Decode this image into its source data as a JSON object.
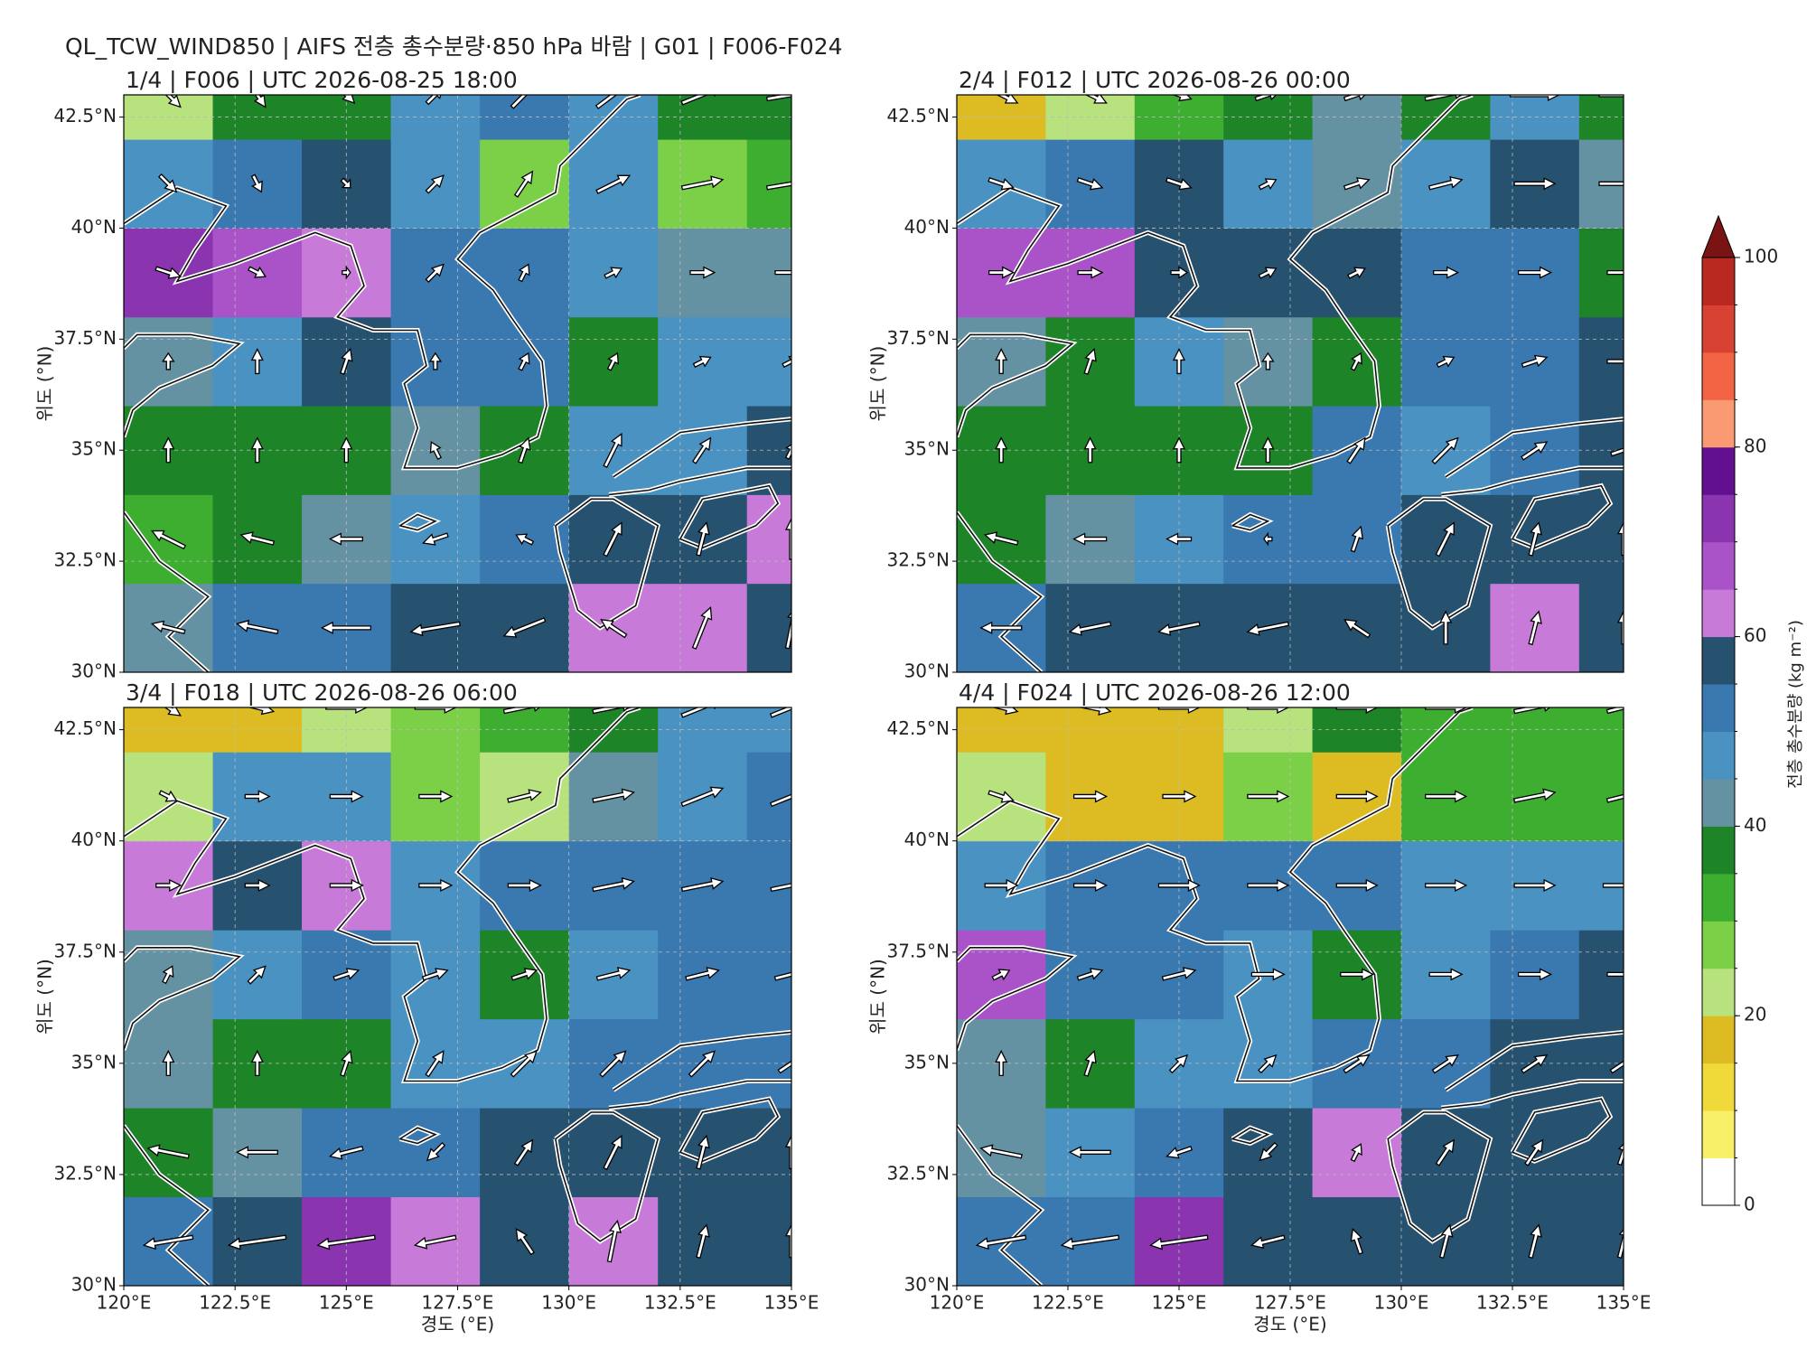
{
  "title": "QL_TCW_WIND850 | AIFS 전층 총수분량·850 hPa 바람 | G01 | F006-F024",
  "chart_data": [
    {
      "type": "heatmap",
      "title": "1/4 | F006 | UTC 2026-08-25 18:00",
      "ylabel": "위도 (°N)",
      "xlim": [
        120,
        135
      ],
      "ylim": [
        30,
        43
      ],
      "grid": true,
      "yticks": [
        {
          "value": 30,
          "label": "30°N"
        },
        {
          "value": 32.5,
          "label": "32.5°N"
        },
        {
          "value": 35,
          "label": "35°N"
        },
        {
          "value": 37.5,
          "label": "37.5°N"
        },
        {
          "value": 40,
          "label": "40°N"
        },
        {
          "value": 42.5,
          "label": "42.5°N"
        }
      ],
      "x": [
        121,
        123,
        125,
        127,
        129,
        131,
        133,
        135
      ],
      "y": [
        31,
        33,
        35,
        37,
        39,
        41,
        43
      ],
      "values": [
        [
          40,
          50,
          52,
          55,
          55,
          62,
          62,
          58
        ],
        [
          32,
          35,
          40,
          48,
          50,
          55,
          55,
          62
        ],
        [
          35,
          36,
          38,
          40,
          38,
          45,
          48,
          55
        ],
        [
          42,
          45,
          55,
          50,
          52,
          38,
          45,
          48
        ],
        [
          70,
          68,
          62,
          50,
          50,
          48,
          42,
          40
        ],
        [
          45,
          50,
          55,
          45,
          25,
          45,
          28,
          30
        ],
        [
          22,
          38,
          35,
          45,
          50,
          45,
          38,
          35
        ]
      ],
      "wind_u": [
        [
          -4,
          -5,
          -6,
          -6,
          -5,
          -3,
          2,
          1
        ],
        [
          -4,
          -4,
          -4,
          -3,
          -2,
          2,
          1,
          0
        ],
        [
          0,
          0,
          0,
          -1,
          1,
          2,
          2,
          1
        ],
        [
          0,
          0,
          1,
          0,
          1,
          1,
          2,
          2
        ],
        [
          3,
          2,
          1,
          2,
          1,
          2,
          3,
          4
        ],
        [
          2,
          1,
          1,
          2,
          2,
          4,
          5,
          6
        ],
        [
          3,
          2,
          2,
          2,
          3,
          4,
          5,
          6
        ]
      ],
      "wind_v": [
        [
          1,
          1,
          0,
          -1,
          -2,
          2,
          5,
          5
        ],
        [
          2,
          1,
          0,
          -1,
          1,
          4,
          4,
          5
        ],
        [
          3,
          3,
          3,
          2,
          3,
          4,
          3,
          2
        ],
        [
          2,
          3,
          3,
          2,
          2,
          2,
          1,
          1
        ],
        [
          -1,
          -1,
          0,
          2,
          2,
          1,
          0,
          0
        ],
        [
          -2,
          -2,
          -1,
          2,
          3,
          2,
          1,
          1
        ],
        [
          -3,
          -3,
          -2,
          2,
          3,
          3,
          2,
          1
        ]
      ]
    },
    {
      "type": "heatmap",
      "title": "2/4 | F012 | UTC 2026-08-26 00:00",
      "ylabel": "위도 (°N)",
      "xlim": [
        120,
        135
      ],
      "ylim": [
        30,
        43
      ],
      "grid": true,
      "yticks": [
        {
          "value": 30,
          "label": "30°N"
        },
        {
          "value": 32.5,
          "label": "32.5°N"
        },
        {
          "value": 35,
          "label": "35°N"
        },
        {
          "value": 37.5,
          "label": "37.5°N"
        },
        {
          "value": 40,
          "label": "40°N"
        },
        {
          "value": 42.5,
          "label": "42.5°N"
        }
      ],
      "x": [
        121,
        123,
        125,
        127,
        129,
        131,
        133,
        135
      ],
      "y": [
        31,
        33,
        35,
        37,
        39,
        41,
        43
      ],
      "values": [
        [
          52,
          55,
          58,
          58,
          55,
          58,
          62,
          55
        ],
        [
          36,
          40,
          48,
          52,
          52,
          55,
          56,
          58
        ],
        [
          35,
          36,
          38,
          38,
          50,
          48,
          52,
          55
        ],
        [
          40,
          38,
          45,
          42,
          38,
          50,
          52,
          55
        ],
        [
          68,
          68,
          58,
          55,
          55,
          52,
          50,
          38
        ],
        [
          48,
          50,
          55,
          45,
          40,
          45,
          55,
          40
        ],
        [
          15,
          22,
          30,
          38,
          40,
          35,
          45,
          38
        ]
      ],
      "wind_u": [
        [
          -5,
          -5,
          -5,
          -5,
          -3,
          0,
          1,
          0
        ],
        [
          -4,
          -4,
          -3,
          -1,
          1,
          2,
          1,
          0
        ],
        [
          0,
          0,
          0,
          0,
          2,
          3,
          3,
          3
        ],
        [
          0,
          1,
          0,
          0,
          1,
          2,
          3,
          4
        ],
        [
          3,
          3,
          2,
          2,
          2,
          3,
          4,
          4
        ],
        [
          3,
          3,
          3,
          2,
          3,
          4,
          5,
          6
        ],
        [
          4,
          4,
          3,
          3,
          3,
          5,
          6,
          6
        ]
      ],
      "wind_v": [
        [
          0,
          -1,
          -1,
          -1,
          2,
          4,
          4,
          4
        ],
        [
          1,
          0,
          0,
          0,
          3,
          4,
          4,
          4
        ],
        [
          3,
          3,
          3,
          3,
          3,
          3,
          2,
          1
        ],
        [
          3,
          3,
          3,
          2,
          2,
          1,
          1,
          0
        ],
        [
          0,
          0,
          0,
          1,
          1,
          0,
          0,
          0
        ],
        [
          -1,
          -1,
          -1,
          1,
          1,
          1,
          0,
          0
        ],
        [
          -2,
          -2,
          -1,
          1,
          1,
          1,
          0,
          0
        ]
      ]
    },
    {
      "type": "heatmap",
      "title": "3/4 | F018 | UTC 2026-08-26 06:00",
      "xlabel": "경도 (°E)",
      "ylabel": "위도 (°N)",
      "xlim": [
        120,
        135
      ],
      "ylim": [
        30,
        43
      ],
      "grid": true,
      "xticks": [
        {
          "value": 120,
          "label": "120°E"
        },
        {
          "value": 122.5,
          "label": "122.5°E"
        },
        {
          "value": 125,
          "label": "125°E"
        },
        {
          "value": 127.5,
          "label": "127.5°E"
        },
        {
          "value": 130,
          "label": "130°E"
        },
        {
          "value": 132.5,
          "label": "132.5°E"
        },
        {
          "value": 135,
          "label": "135°E"
        }
      ],
      "yticks": [
        {
          "value": 30,
          "label": "30°N"
        },
        {
          "value": 32.5,
          "label": "32.5°N"
        },
        {
          "value": 35,
          "label": "35°N"
        },
        {
          "value": 37.5,
          "label": "37.5°N"
        },
        {
          "value": 40,
          "label": "40°N"
        },
        {
          "value": 42.5,
          "label": "42.5°N"
        }
      ],
      "x": [
        121,
        123,
        125,
        127,
        129,
        131,
        133,
        135
      ],
      "y": [
        31,
        33,
        35,
        37,
        39,
        41,
        43
      ],
      "values": [
        [
          50,
          55,
          70,
          62,
          55,
          62,
          55,
          55
        ],
        [
          38,
          42,
          52,
          52,
          55,
          58,
          55,
          55
        ],
        [
          40,
          35,
          36,
          45,
          48,
          52,
          50,
          50
        ],
        [
          42,
          45,
          50,
          48,
          38,
          48,
          50,
          52
        ],
        [
          62,
          55,
          62,
          45,
          50,
          50,
          52,
          50
        ],
        [
          20,
          45,
          48,
          25,
          22,
          40,
          48,
          50
        ],
        [
          15,
          18,
          22,
          25,
          32,
          38,
          45,
          48
        ]
      ],
      "wind_u": [
        [
          -6,
          -7,
          -7,
          -5,
          -2,
          1,
          1,
          0
        ],
        [
          -5,
          -5,
          -4,
          -2,
          2,
          2,
          1,
          0
        ],
        [
          0,
          0,
          1,
          2,
          3,
          3,
          3,
          3
        ],
        [
          1,
          2,
          3,
          3,
          3,
          4,
          4,
          4
        ],
        [
          3,
          3,
          4,
          4,
          4,
          5,
          5,
          5
        ],
        [
          2,
          3,
          4,
          4,
          4,
          5,
          5,
          5
        ],
        [
          3,
          4,
          5,
          5,
          5,
          5,
          5,
          5
        ]
      ],
      "wind_v": [
        [
          -1,
          -1,
          -1,
          -1,
          3,
          5,
          4,
          4
        ],
        [
          1,
          0,
          -1,
          -2,
          3,
          4,
          4,
          4
        ],
        [
          3,
          3,
          3,
          3,
          3,
          3,
          3,
          2
        ],
        [
          2,
          2,
          1,
          1,
          1,
          1,
          1,
          1
        ],
        [
          0,
          0,
          0,
          0,
          0,
          1,
          1,
          1
        ],
        [
          -1,
          0,
          0,
          0,
          1,
          1,
          2,
          2
        ],
        [
          -2,
          -1,
          0,
          0,
          1,
          1,
          2,
          2
        ]
      ]
    },
    {
      "type": "heatmap",
      "title": "4/4 | F024 | UTC 2026-08-26 12:00",
      "xlabel": "경도 (°E)",
      "ylabel": "위도 (°N)",
      "xlim": [
        120,
        135
      ],
      "ylim": [
        30,
        43
      ],
      "grid": true,
      "xticks": [
        {
          "value": 120,
          "label": "120°E"
        },
        {
          "value": 122.5,
          "label": "122.5°E"
        },
        {
          "value": 125,
          "label": "125°E"
        },
        {
          "value": 127.5,
          "label": "127.5°E"
        },
        {
          "value": 130,
          "label": "130°E"
        },
        {
          "value": 132.5,
          "label": "132.5°E"
        },
        {
          "value": 135,
          "label": "135°E"
        }
      ],
      "yticks": [
        {
          "value": 30,
          "label": "30°N"
        },
        {
          "value": 32.5,
          "label": "32.5°N"
        },
        {
          "value": 35,
          "label": "35°N"
        },
        {
          "value": 37.5,
          "label": "37.5°N"
        },
        {
          "value": 40,
          "label": "40°N"
        },
        {
          "value": 42.5,
          "label": "42.5°N"
        }
      ],
      "x": [
        121,
        123,
        125,
        127,
        129,
        131,
        133,
        135
      ],
      "y": [
        31,
        33,
        35,
        37,
        39,
        41,
        43
      ],
      "values": [
        [
          50,
          52,
          70,
          58,
          58,
          58,
          55,
          55
        ],
        [
          40,
          45,
          52,
          55,
          62,
          55,
          58,
          55
        ],
        [
          42,
          38,
          45,
          48,
          50,
          52,
          55,
          58
        ],
        [
          65,
          50,
          52,
          48,
          38,
          45,
          50,
          58
        ],
        [
          45,
          50,
          50,
          50,
          50,
          48,
          48,
          45
        ],
        [
          22,
          15,
          18,
          25,
          15,
          30,
          30,
          30
        ],
        [
          15,
          15,
          18,
          22,
          35,
          32,
          30,
          30
        ]
      ],
      "wind_u": [
        [
          -6,
          -7,
          -7,
          -4,
          -1,
          1,
          1,
          1
        ],
        [
          -5,
          -5,
          -3,
          -2,
          1,
          2,
          2,
          1
        ],
        [
          0,
          1,
          2,
          2,
          3,
          3,
          3,
          3
        ],
        [
          2,
          3,
          4,
          4,
          4,
          4,
          4,
          4
        ],
        [
          4,
          4,
          5,
          5,
          5,
          5,
          5,
          5
        ],
        [
          3,
          4,
          4,
          5,
          5,
          5,
          5,
          4
        ],
        [
          4,
          5,
          5,
          5,
          5,
          5,
          5,
          4
        ]
      ],
      "wind_v": [
        [
          -1,
          -1,
          -1,
          -1,
          3,
          4,
          4,
          4
        ],
        [
          1,
          0,
          -1,
          -2,
          2,
          3,
          3,
          3
        ],
        [
          3,
          3,
          2,
          2,
          2,
          2,
          2,
          2
        ],
        [
          1,
          1,
          1,
          0,
          0,
          0,
          0,
          0
        ],
        [
          0,
          0,
          0,
          0,
          0,
          0,
          0,
          0
        ],
        [
          -1,
          0,
          0,
          0,
          0,
          0,
          1,
          1
        ],
        [
          -1,
          -1,
          0,
          0,
          0,
          0,
          1,
          1
        ]
      ]
    }
  ],
  "colorbar": {
    "label": "전층 총수분량 (kg m⁻²)",
    "levels": [
      0,
      5,
      10,
      15,
      20,
      25,
      30,
      35,
      40,
      45,
      50,
      55,
      60,
      65,
      70,
      75,
      80,
      85,
      90,
      95,
      100
    ],
    "colors": [
      "#ffffff",
      "#f8f068",
      "#f0da3a",
      "#dcbc22",
      "#b8e27e",
      "#7cd048",
      "#3eae30",
      "#1e8428",
      "#6592a2",
      "#4a92c2",
      "#3a78b0",
      "#265270",
      "#c87ad8",
      "#aa52c8",
      "#8a34b0",
      "#621090",
      "#fa9a72",
      "#f26444",
      "#d84232",
      "#b82a20"
    ],
    "extend_color": "#7a1414",
    "ticks": [
      0,
      20,
      40,
      60,
      80,
      100
    ]
  }
}
